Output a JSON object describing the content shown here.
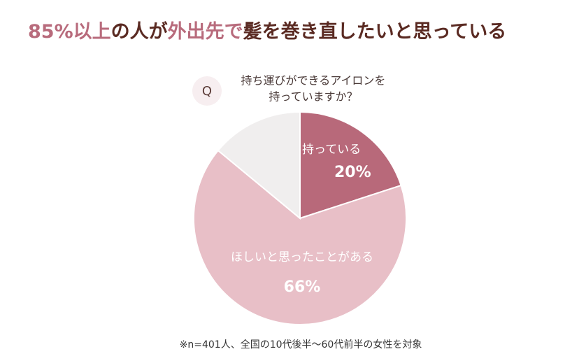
{
  "chart_data": {
    "type": "pie",
    "title_parts": [
      "85%以上",
      "の人が",
      "外出先で",
      "髪を巻き直したいと思っている"
    ],
    "title_colors": [
      "#b86b7c",
      "#5a2a22",
      "#b86b7c",
      "#5a2a22"
    ],
    "question_mark": "Q",
    "question": [
      "持ち運びができるアイロンを",
      "持っていますか？"
    ],
    "categories": [
      "持っている",
      "ほしいと思ったことがある",
      null
    ],
    "values": [
      20,
      66,
      14
    ],
    "value_labels": [
      "20%",
      "66%",
      null
    ],
    "colors": [
      "#b8697a",
      "#e8bfc7",
      "#f0eeee"
    ],
    "note": "※n=401人、全国の10代後半〜60代前半の女性を対象"
  }
}
